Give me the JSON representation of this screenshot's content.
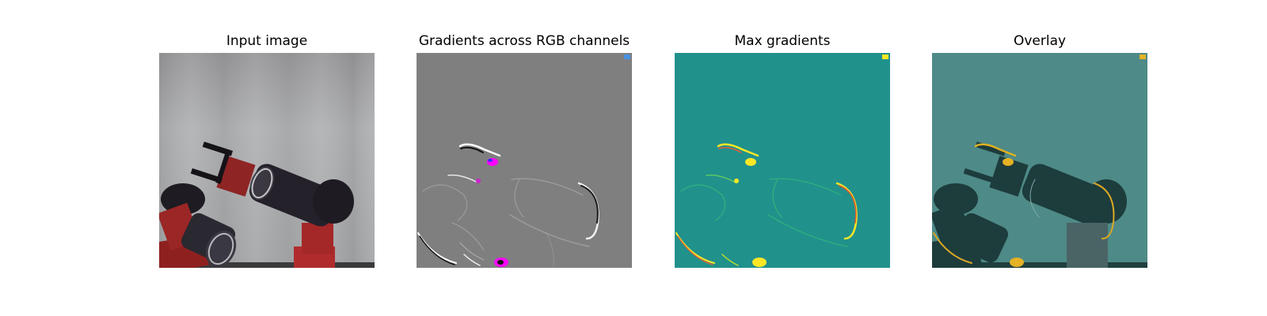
{
  "panels": [
    {
      "title": "Input image"
    },
    {
      "title": "Gradients across RGB channels"
    },
    {
      "title": "Max gradients"
    },
    {
      "title": "Overlay"
    }
  ],
  "colors": {
    "gray_background": "#7f7f7f",
    "viridis_background": "#21918c",
    "viridis_high": "#fde725",
    "robot_red": "#a12a2a",
    "robot_black": "#1e1b22"
  }
}
